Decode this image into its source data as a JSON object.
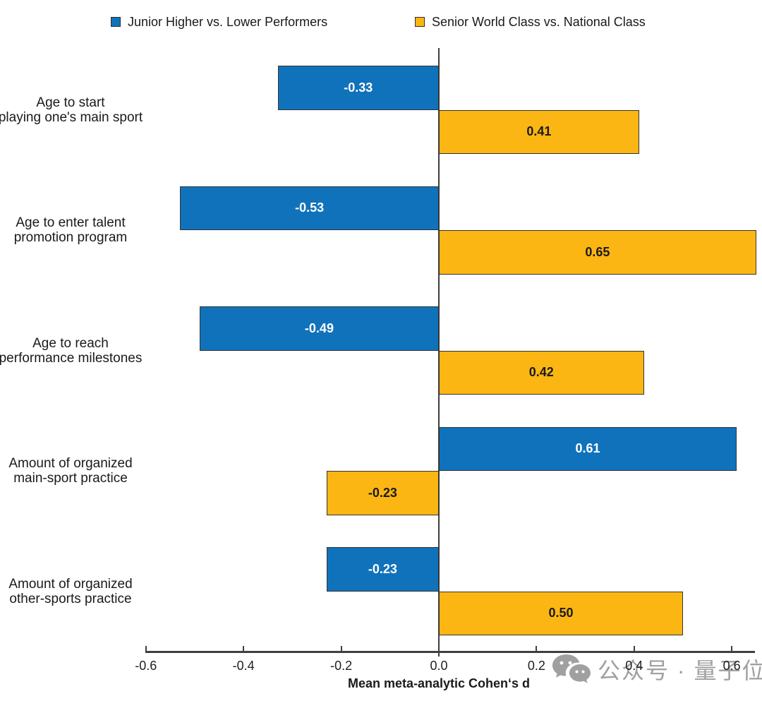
{
  "legend": {
    "items": [
      {
        "label": "Junior Higher vs. Lower Performers",
        "color": "#1072BB"
      },
      {
        "label": "Senior World Class vs. National Class",
        "color": "#FCB613"
      }
    ]
  },
  "chart_data": {
    "type": "bar",
    "orientation": "horizontal",
    "diverging": true,
    "title": "",
    "xlabel": "Mean meta-analytic Cohen‘s d",
    "ylabel": "",
    "categories": [
      [
        "Age to start",
        "playing one's main sport"
      ],
      [
        "Age to enter talent",
        "promotion program"
      ],
      [
        "Age to reach",
        "performance milestones"
      ],
      [
        "Amount of organized",
        "main-sport practice"
      ],
      [
        "Amount of organized",
        "other-sports practice"
      ]
    ],
    "series": [
      {
        "name": "Junior Higher vs. Lower Performers",
        "color": "#1072BB",
        "value_label_color": "#ffffff",
        "values": [
          -0.33,
          -0.53,
          -0.49,
          0.61,
          -0.23
        ]
      },
      {
        "name": "Senior World Class vs. National Class",
        "color": "#FCB613",
        "value_label_color": "#1a1a1a",
        "values": [
          0.41,
          0.65,
          0.42,
          -0.23,
          0.5
        ]
      }
    ],
    "value_labels": [
      [
        "-0.33",
        "-0.53",
        "-0.49",
        "0.61",
        "-0.23"
      ],
      [
        "0.41",
        "0.65",
        "0.42",
        "-0.23",
        "0.50"
      ]
    ],
    "x_ticks": [
      -0.6,
      -0.4,
      -0.2,
      0.0,
      0.2,
      0.4,
      0.6
    ],
    "x_tick_labels": [
      "-0.6",
      "-0.4",
      "-0.2",
      "0.0",
      "0.2",
      "0.4",
      "0.6"
    ],
    "xlim": [
      -0.6,
      0.66
    ],
    "grid": false,
    "legend_position": "top"
  },
  "watermark": {
    "icon": "wechat-icon",
    "text": "公众号 · 量子位"
  }
}
